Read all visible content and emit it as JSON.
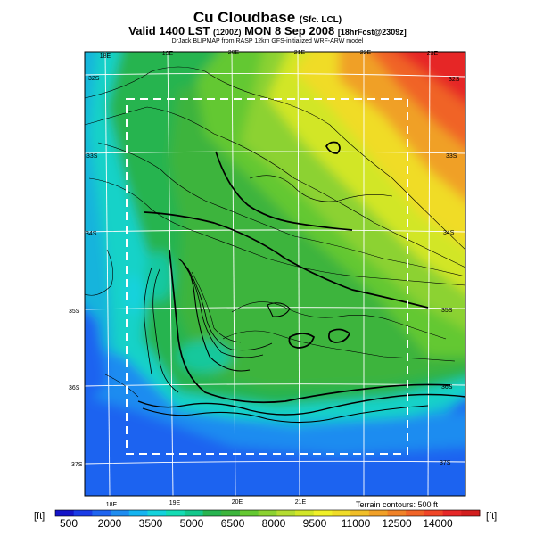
{
  "header": {
    "title": "Cu Cloudbase",
    "title_note": "(Sfc. LCL)",
    "valid": "Valid 1400 LST",
    "valid_note": "(1200Z)",
    "valid_date": "MON 8 Sep 2008",
    "forecast_note": "[18hrFcst@2309z]",
    "credit": "DrJack BLIPMAP from RASP 12km GFS-initialized WRF-ARW model"
  },
  "map": {
    "lon_labels_top": [
      "18E",
      "19E",
      "20E",
      "21E",
      "22E",
      "23E"
    ],
    "lon_labels_bottom": [
      "18E",
      "19E",
      "20E",
      "21E"
    ],
    "lat_labels_left": [
      "32S",
      "33S",
      "34S",
      "35S",
      "36S",
      "37S"
    ],
    "lat_labels_right": [
      "32S",
      "33S",
      "34S",
      "35S",
      "36S",
      "37S"
    ],
    "terrain_note": "Terrain contours: 500 ft"
  },
  "colorbar": {
    "unit_left": "[ft]",
    "unit_right": "[ft]",
    "tick_labels": [
      "500",
      "2000",
      "3500",
      "5000",
      "6500",
      "8000",
      "9500",
      "11000",
      "12500",
      "14000"
    ],
    "colors": [
      "#1414c8",
      "#1a3ce6",
      "#1e64f0",
      "#1e8cf0",
      "#14b4f0",
      "#14d2dc",
      "#14dcb4",
      "#14c88c",
      "#28b450",
      "#3cb43c",
      "#64c832",
      "#8cd232",
      "#b4dc32",
      "#d2e628",
      "#f0f028",
      "#f0dc28",
      "#f0be28",
      "#f0a028",
      "#f08228",
      "#f06428",
      "#f04628",
      "#e62828",
      "#d21e1e"
    ]
  }
}
